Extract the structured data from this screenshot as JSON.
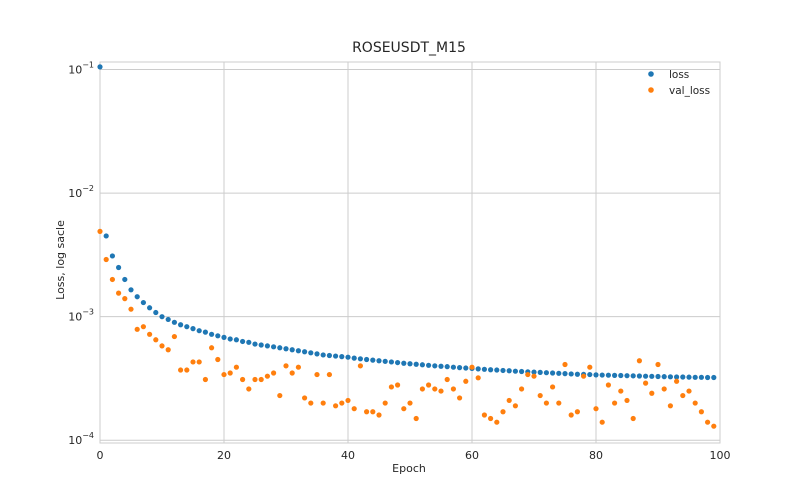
{
  "chart_data": {
    "type": "scatter",
    "title": "ROSEUSDT_M15",
    "xlabel": "Epoch",
    "ylabel": "Loss, log sacle",
    "xlim": [
      0,
      100
    ],
    "ylim": [
      9.5e-05,
      0.115
    ],
    "yscale": "log",
    "grid": true,
    "legend_position": "top-right",
    "x_ticks": [
      0,
      20,
      40,
      60,
      80,
      100
    ],
    "y_ticks": [
      {
        "value": 0.1,
        "base": "10",
        "exp": "−1"
      },
      {
        "value": 0.01,
        "base": "10",
        "exp": "−2"
      },
      {
        "value": 0.001,
        "base": "10",
        "exp": "−3"
      },
      {
        "value": 0.0001,
        "base": "10",
        "exp": "−4"
      }
    ],
    "series": [
      {
        "name": "loss",
        "color": "#1f77b4",
        "x": [
          0,
          1,
          2,
          3,
          4,
          5,
          6,
          7,
          8,
          9,
          10,
          11,
          12,
          13,
          14,
          15,
          16,
          17,
          18,
          19,
          20,
          21,
          22,
          23,
          24,
          25,
          26,
          27,
          28,
          29,
          30,
          31,
          32,
          33,
          34,
          35,
          36,
          37,
          38,
          39,
          40,
          41,
          42,
          43,
          44,
          45,
          46,
          47,
          48,
          49,
          50,
          51,
          52,
          53,
          54,
          55,
          56,
          57,
          58,
          59,
          60,
          61,
          62,
          63,
          64,
          65,
          66,
          67,
          68,
          69,
          70,
          71,
          72,
          73,
          74,
          75,
          76,
          77,
          78,
          79,
          80,
          81,
          82,
          83,
          84,
          85,
          86,
          87,
          88,
          89,
          90,
          91,
          92,
          93,
          94,
          95,
          96,
          97,
          98,
          99
        ],
        "y": [
          0.105,
          0.0045,
          0.0031,
          0.0025,
          0.002,
          0.00165,
          0.00145,
          0.0013,
          0.00118,
          0.00108,
          0.001,
          0.00095,
          0.0009,
          0.00086,
          0.00083,
          0.0008,
          0.00077,
          0.00075,
          0.00072,
          0.0007,
          0.00068,
          0.00066,
          0.00065,
          0.00063,
          0.00062,
          0.0006,
          0.00059,
          0.00058,
          0.00057,
          0.00056,
          0.00055,
          0.00054,
          0.00053,
          0.00052,
          0.00051,
          0.0005,
          0.00049,
          0.000485,
          0.00048,
          0.000475,
          0.00047,
          0.000462,
          0.000456,
          0.00045,
          0.000445,
          0.00044,
          0.000435,
          0.00043,
          0.000425,
          0.00042,
          0.000416,
          0.000412,
          0.000408,
          0.000404,
          0.0004,
          0.000397,
          0.000394,
          0.00039,
          0.000387,
          0.000384,
          0.000381,
          0.000378,
          0.000375,
          0.000372,
          0.00037,
          0.000367,
          0.000365,
          0.000362,
          0.00036,
          0.000358,
          0.000356,
          0.000354,
          0.000352,
          0.00035,
          0.000348,
          0.000346,
          0.000344,
          0.000342,
          0.000341,
          0.00034,
          0.000338,
          0.000337,
          0.000336,
          0.000335,
          0.000334,
          0.000333,
          0.000332,
          0.000331,
          0.00033,
          0.000329,
          0.000328,
          0.000327,
          0.000326,
          0.000325,
          0.000325,
          0.000324,
          0.000323,
          0.000323,
          0.000322,
          0.000322
        ]
      },
      {
        "name": "val_loss",
        "color": "#ff7f0e",
        "x": [
          0,
          1,
          2,
          3,
          4,
          5,
          6,
          7,
          8,
          9,
          10,
          11,
          12,
          13,
          14,
          15,
          16,
          17,
          18,
          19,
          20,
          21,
          22,
          23,
          24,
          25,
          26,
          27,
          28,
          29,
          30,
          31,
          32,
          33,
          34,
          35,
          36,
          37,
          38,
          39,
          40,
          41,
          42,
          43,
          44,
          45,
          46,
          47,
          48,
          49,
          50,
          51,
          52,
          53,
          54,
          55,
          56,
          57,
          58,
          59,
          60,
          61,
          62,
          63,
          64,
          65,
          66,
          67,
          68,
          69,
          70,
          71,
          72,
          73,
          74,
          75,
          76,
          77,
          78,
          79,
          80,
          81,
          82,
          83,
          84,
          85,
          86,
          87,
          88,
          89,
          90,
          91,
          92,
          93,
          94,
          95,
          96,
          97,
          98,
          99
        ],
        "y": [
          0.0049,
          0.0029,
          0.002,
          0.00155,
          0.0014,
          0.00115,
          0.00079,
          0.00083,
          0.00072,
          0.00065,
          0.00058,
          0.00054,
          0.00069,
          0.00037,
          0.00037,
          0.00043,
          0.00043,
          0.00031,
          0.00056,
          0.00045,
          0.00034,
          0.00035,
          0.00039,
          0.00031,
          0.00026,
          0.00031,
          0.00031,
          0.00033,
          0.00035,
          0.00023,
          0.0004,
          0.00035,
          0.00039,
          0.00022,
          0.0002,
          0.00034,
          0.0002,
          0.00034,
          0.00019,
          0.0002,
          0.00021,
          0.00018,
          0.0004,
          0.00017,
          0.00017,
          0.00016,
          0.0002,
          0.00027,
          0.00028,
          0.00018,
          0.0002,
          0.00015,
          0.00026,
          0.00028,
          0.00026,
          0.00025,
          0.00031,
          0.00026,
          0.00022,
          0.0003,
          0.00039,
          0.00032,
          0.00016,
          0.00015,
          0.00014,
          0.00017,
          0.00021,
          0.00019,
          0.00026,
          0.00034,
          0.00033,
          0.00023,
          0.0002,
          0.00027,
          0.0002,
          0.00041,
          0.00016,
          0.00017,
          0.00033,
          0.00039,
          0.00018,
          0.00014,
          0.00028,
          0.0002,
          0.00025,
          0.00021,
          0.00015,
          0.00044,
          0.00029,
          0.00024,
          0.00041,
          0.00026,
          0.00019,
          0.0003,
          0.00023,
          0.00025,
          0.0002,
          0.00017,
          0.00014,
          0.00013
        ]
      }
    ]
  }
}
